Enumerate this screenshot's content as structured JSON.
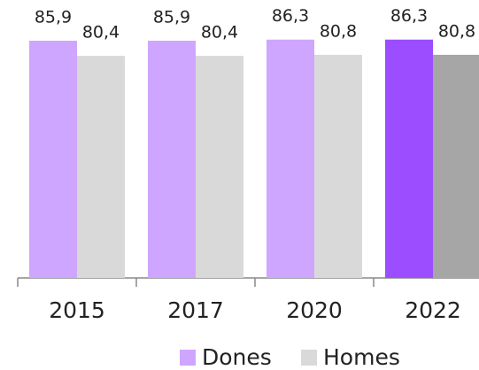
{
  "chart_data": {
    "type": "bar",
    "categories": [
      "2015",
      "2017",
      "2020",
      "2022"
    ],
    "series": [
      {
        "name": "Dones",
        "color": "#cfa6ff",
        "colors": [
          "#cfa6ff",
          "#cfa6ff",
          "#cfa6ff",
          "#9b4dff"
        ],
        "values": [
          85.9,
          85.9,
          86.3,
          86.3
        ],
        "value_labels": [
          "85,9",
          "85,9",
          "86,3",
          "86,3"
        ]
      },
      {
        "name": "Homes",
        "color": "#d9d9d9",
        "colors": [
          "#d9d9d9",
          "#d9d9d9",
          "#d9d9d9",
          "#a6a6a6"
        ],
        "values": [
          80.4,
          80.4,
          80.8,
          80.8
        ],
        "value_labels": [
          "80,4",
          "80,4",
          "80,8",
          "80,8"
        ]
      }
    ],
    "ylim": [
      0,
      100
    ]
  }
}
